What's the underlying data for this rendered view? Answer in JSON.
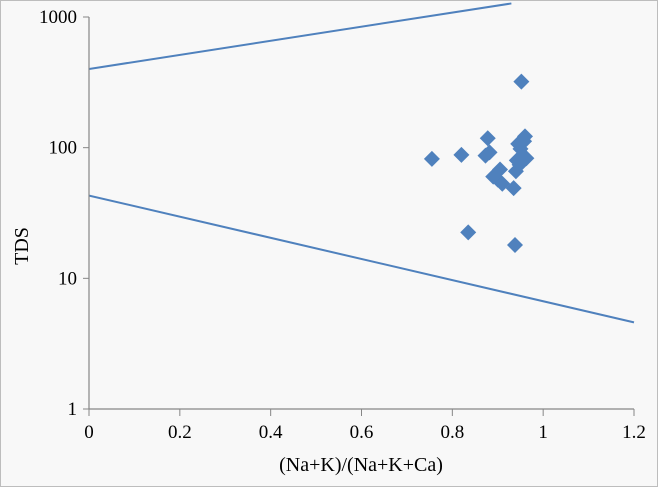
{
  "chart_data": {
    "type": "scatter",
    "title": "",
    "xlabel": "(Na+K)/(Na+K+Ca)",
    "ylabel": "TDS",
    "xlim": [
      0,
      1.2
    ],
    "ylim": [
      1,
      1000
    ],
    "y_scale": "log",
    "grid": false,
    "legend": "none",
    "x_ticks": [
      "0",
      "0.2",
      "0.4",
      "0.6",
      "0.8",
      "1",
      "1.2"
    ],
    "y_ticks": [
      "1",
      "10",
      "100",
      "1000"
    ],
    "marker": "diamond",
    "colors": {
      "marker": "#4f81bd",
      "line": "#4f81bd",
      "axis": "#868686",
      "plot_bg": "#f8f8f8"
    },
    "series": [
      {
        "type": "scatter",
        "points": [
          {
            "x": 0.755,
            "y": 82
          },
          {
            "x": 0.82,
            "y": 88
          },
          {
            "x": 0.835,
            "y": 22.5
          },
          {
            "x": 0.873,
            "y": 87
          },
          {
            "x": 0.878,
            "y": 118
          },
          {
            "x": 0.882,
            "y": 92
          },
          {
            "x": 0.89,
            "y": 60
          },
          {
            "x": 0.9,
            "y": 57
          },
          {
            "x": 0.905,
            "y": 68
          },
          {
            "x": 0.91,
            "y": 53
          },
          {
            "x": 0.935,
            "y": 49
          },
          {
            "x": 0.938,
            "y": 18
          },
          {
            "x": 0.94,
            "y": 66
          },
          {
            "x": 0.942,
            "y": 80
          },
          {
            "x": 0.945,
            "y": 107
          },
          {
            "x": 0.948,
            "y": 74
          },
          {
            "x": 0.95,
            "y": 98
          },
          {
            "x": 0.952,
            "y": 320
          },
          {
            "x": 0.955,
            "y": 85
          },
          {
            "x": 0.958,
            "y": 112
          },
          {
            "x": 0.96,
            "y": 122
          },
          {
            "x": 0.963,
            "y": 83
          }
        ]
      },
      {
        "type": "line",
        "points": [
          {
            "x": 0,
            "y": 400
          },
          {
            "x": 0.93,
            "y": 1270
          }
        ]
      },
      {
        "type": "line",
        "points": [
          {
            "x": 0,
            "y": 43
          },
          {
            "x": 1.2,
            "y": 4.6
          }
        ]
      }
    ]
  }
}
